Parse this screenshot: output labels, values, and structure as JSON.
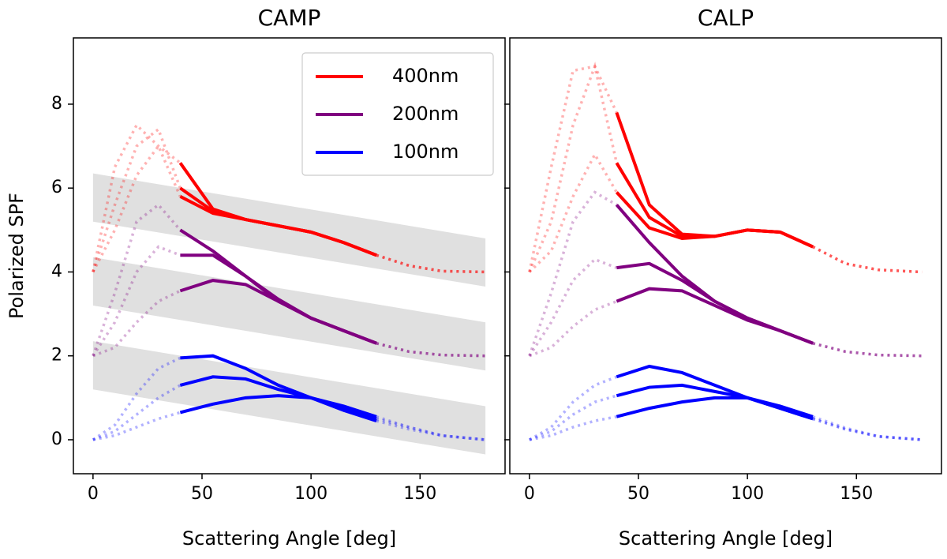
{
  "chart_data": [
    {
      "type": "line",
      "title": "CAMP",
      "xlabel": "Scattering Angle [deg]",
      "ylabel": "Polarized SPF",
      "x": [
        0,
        10,
        20,
        30,
        40,
        55,
        70,
        85,
        100,
        115,
        130,
        145,
        160,
        180
      ],
      "solid_range": [
        40,
        130
      ],
      "xlim": [
        -9,
        189
      ],
      "xticks": [
        0,
        50,
        100,
        150
      ],
      "ylim": [
        -0.81,
        9.58
      ],
      "yticks": [
        0,
        2,
        4,
        6,
        8
      ],
      "legend": "upper right",
      "series": [
        {
          "name": "400nm",
          "color": "#ff0000",
          "lines": [
            [
              4.0,
              6.5,
              7.5,
              7.0,
              6.6,
              5.5,
              5.25,
              5.1,
              4.95,
              4.7,
              4.4,
              4.15,
              4.02,
              4.0
            ],
            [
              4.0,
              5.6,
              7.0,
              7.4,
              6.0,
              5.45,
              5.25,
              5.1,
              4.95,
              4.7,
              4.4,
              4.15,
              4.02,
              4.0
            ],
            [
              4.0,
              5.0,
              6.3,
              7.0,
              5.8,
              5.4,
              5.25,
              5.1,
              4.95,
              4.7,
              4.4,
              4.15,
              4.02,
              4.0
            ]
          ]
        },
        {
          "name": "200nm",
          "color": "#800080",
          "lines": [
            [
              2.0,
              3.5,
              5.2,
              5.6,
              5.0,
              4.5,
              3.9,
              3.3,
              2.9,
              2.6,
              2.3,
              2.1,
              2.02,
              2.0
            ],
            [
              2.0,
              2.8,
              4.0,
              4.6,
              4.4,
              4.4,
              3.9,
              3.35,
              2.9,
              2.6,
              2.3,
              2.1,
              2.02,
              2.0
            ],
            [
              2.0,
              2.2,
              2.8,
              3.3,
              3.55,
              3.8,
              3.7,
              3.3,
              2.9,
              2.6,
              2.3,
              2.1,
              2.02,
              2.0
            ]
          ]
        },
        {
          "name": "100nm",
          "color": "#0000ff",
          "lines": [
            [
              0,
              0.35,
              1.1,
              1.7,
              1.95,
              2.0,
              1.7,
              1.3,
              1.0,
              0.7,
              0.45,
              0.25,
              0.1,
              0
            ],
            [
              0,
              0.2,
              0.6,
              1.0,
              1.3,
              1.5,
              1.45,
              1.2,
              1.0,
              0.75,
              0.5,
              0.3,
              0.1,
              0
            ],
            [
              0,
              0.1,
              0.3,
              0.5,
              0.65,
              0.85,
              1.0,
              1.05,
              1.0,
              0.8,
              0.55,
              0.3,
              0.1,
              0
            ]
          ]
        }
      ],
      "bands": [
        {
          "x": [
            0,
            180
          ],
          "upper": [
            6.35,
            4.8
          ],
          "lower": [
            5.2,
            3.65
          ],
          "color": "#e0e0e0"
        },
        {
          "x": [
            0,
            180
          ],
          "upper": [
            4.35,
            2.8
          ],
          "lower": [
            3.2,
            1.65
          ],
          "color": "#e0e0e0"
        },
        {
          "x": [
            0,
            180
          ],
          "upper": [
            2.35,
            0.8
          ],
          "lower": [
            1.2,
            -0.35
          ],
          "color": "#e0e0e0"
        }
      ]
    },
    {
      "type": "line",
      "title": "CALP",
      "xlabel": "Scattering Angle [deg]",
      "x": [
        0,
        10,
        20,
        30,
        40,
        55,
        70,
        85,
        100,
        115,
        130,
        145,
        160,
        180
      ],
      "solid_range": [
        40,
        130
      ],
      "xlim": [
        -9,
        189
      ],
      "xticks": [
        0,
        50,
        100,
        150
      ],
      "ylim": [
        -0.81,
        9.58
      ],
      "series": [
        {
          "color": "#ff0000",
          "lines": [
            [
              4.0,
              6.5,
              8.8,
              8.9,
              7.8,
              5.6,
              4.9,
              4.85,
              5.0,
              4.95,
              4.6,
              4.2,
              4.05,
              4.0
            ],
            [
              4.0,
              5.2,
              7.5,
              8.9,
              6.6,
              5.3,
              4.85,
              4.85,
              5.0,
              4.95,
              4.6,
              4.2,
              4.05,
              4.0
            ],
            [
              4.0,
              4.5,
              5.8,
              6.8,
              5.9,
              5.05,
              4.8,
              4.85,
              5.0,
              4.95,
              4.6,
              4.2,
              4.05,
              4.0
            ]
          ]
        },
        {
          "color": "#800080",
          "lines": [
            [
              2.0,
              3.5,
              5.2,
              5.9,
              5.6,
              4.7,
              3.9,
              3.3,
              2.9,
              2.6,
              2.3,
              2.1,
              2.02,
              2.0
            ],
            [
              2.0,
              2.8,
              3.8,
              4.3,
              4.1,
              4.2,
              3.8,
              3.3,
              2.9,
              2.6,
              2.3,
              2.1,
              2.02,
              2.0
            ],
            [
              2.0,
              2.2,
              2.7,
              3.1,
              3.3,
              3.6,
              3.55,
              3.2,
              2.85,
              2.6,
              2.3,
              2.1,
              2.02,
              2.0
            ]
          ]
        },
        {
          "color": "#0000ff",
          "lines": [
            [
              0,
              0.3,
              0.9,
              1.3,
              1.5,
              1.75,
              1.6,
              1.3,
              1.0,
              0.75,
              0.5,
              0.25,
              0.08,
              0
            ],
            [
              0,
              0.2,
              0.6,
              0.9,
              1.05,
              1.25,
              1.3,
              1.15,
              1.0,
              0.75,
              0.5,
              0.25,
              0.08,
              0
            ],
            [
              0,
              0.1,
              0.3,
              0.45,
              0.55,
              0.75,
              0.9,
              1.0,
              1.0,
              0.8,
              0.55,
              0.28,
              0.08,
              0
            ]
          ]
        }
      ]
    }
  ]
}
